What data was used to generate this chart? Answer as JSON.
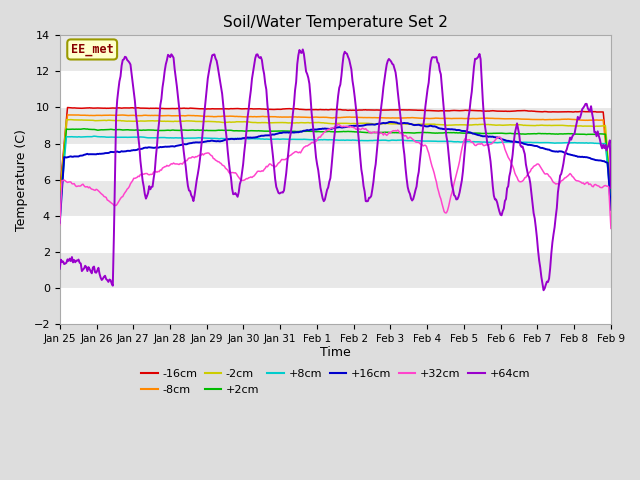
{
  "title": "Soil/Water Temperature Set 2",
  "xlabel": "Time",
  "ylabel": "Temperature (C)",
  "ylim": [
    -2,
    14
  ],
  "yticks": [
    -2,
    0,
    2,
    4,
    6,
    8,
    10,
    12,
    14
  ],
  "annotation_text": "EE_met",
  "annotation_bg": "#ffffcc",
  "annotation_border": "#999900",
  "series_colors": {
    "-16cm": "#dd0000",
    "-8cm": "#ff8800",
    "-2cm": "#cccc00",
    "+2cm": "#00bb00",
    "+8cm": "#00cccc",
    "+16cm": "#0000cc",
    "+32cm": "#ff44cc",
    "+64cm": "#9900cc"
  },
  "xticklabels": [
    "Jan 25",
    "Jan 26",
    "Jan 27",
    "Jan 28",
    "Jan 29",
    "Jan 30",
    "Jan 31",
    "Feb 1",
    "Feb 2",
    "Feb 3",
    "Feb 4",
    "Feb 5",
    "Feb 6",
    "Feb 7",
    "Feb 8",
    "Feb 9"
  ],
  "n_points": 500,
  "bg_color": "#dddddd",
  "axes_bg": "#e8e8e8"
}
